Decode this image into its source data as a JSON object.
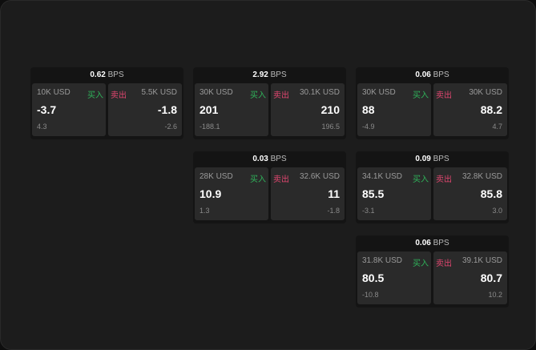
{
  "unit": "BPS",
  "buy_label": "买入",
  "sell_label": "卖出",
  "colors": {
    "buy": "#2fb35a",
    "sell": "#e0466f",
    "background": "#1c1c1c"
  },
  "cards": [
    {
      "spread": "0.62",
      "buy": {
        "amount": "10K USD",
        "price": "-3.7",
        "change": "4.3"
      },
      "sell": {
        "amount": "5.5K USD",
        "price": "-1.8",
        "change": "-2.6"
      }
    },
    {
      "spread": "2.92",
      "buy": {
        "amount": "30K USD",
        "price": "201",
        "change": "-188.1"
      },
      "sell": {
        "amount": "30.1K USD",
        "price": "210",
        "change": "196.5"
      }
    },
    {
      "spread": "0.06",
      "buy": {
        "amount": "30K USD",
        "price": "88",
        "change": "-4.9"
      },
      "sell": {
        "amount": "30K USD",
        "price": "88.2",
        "change": "4.7"
      }
    },
    {
      "spread": "0.03",
      "buy": {
        "amount": "28K USD",
        "price": "10.9",
        "change": "1.3"
      },
      "sell": {
        "amount": "32.6K USD",
        "price": "11",
        "change": "-1.8"
      }
    },
    {
      "spread": "0.09",
      "buy": {
        "amount": "34.1K USD",
        "price": "85.5",
        "change": "-3.1"
      },
      "sell": {
        "amount": "32.8K USD",
        "price": "85.8",
        "change": "3.0"
      }
    },
    {
      "spread": "0.06",
      "buy": {
        "amount": "31.8K USD",
        "price": "80.5",
        "change": "-10.8"
      },
      "sell": {
        "amount": "39.1K USD",
        "price": "80.7",
        "change": "10.2"
      }
    }
  ]
}
